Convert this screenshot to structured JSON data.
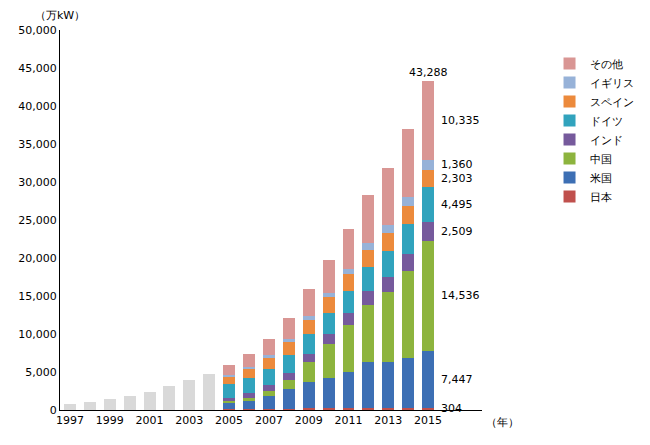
{
  "chart_data": {
    "type": "bar",
    "stacked": true,
    "y_label": "（万kW）",
    "x_label": "（年）",
    "categories": [
      "1997",
      null,
      "1999",
      null,
      "2001",
      null,
      "2003",
      null,
      "2005",
      null,
      "2007",
      null,
      "2009",
      null,
      "2011",
      null,
      "2013",
      null,
      "2015"
    ],
    "series": [
      {
        "color": "#d9d9d9",
        "values": [
          760,
          1020,
          1390,
          1810,
          2390,
          3110,
          3960,
          4790,
          null,
          null,
          null,
          null,
          null,
          null,
          null,
          null,
          null,
          null,
          null
        ]
      },
      {
        "name": "日本",
        "color": "#c0504d",
        "values": [
          null,
          null,
          null,
          null,
          null,
          null,
          null,
          null,
          108,
          149,
          167,
          188,
          208,
          229,
          244,
          261,
          267,
          279,
          304
        ],
        "value_labels": [
          null,
          null,
          null,
          null,
          null,
          null,
          null,
          null,
          null,
          null,
          null,
          null,
          null,
          null,
          null,
          null,
          null,
          null,
          "304"
        ]
      },
      {
        "name": "米国",
        "color": "#3d6fb4",
        "values": [
          null,
          null,
          null,
          null,
          null,
          null,
          null,
          null,
          915,
          1160,
          1688,
          2517,
          3515,
          4030,
          4692,
          6021,
          6109,
          6588,
          7447
        ],
        "value_labels": [
          null,
          null,
          null,
          null,
          null,
          null,
          null,
          null,
          null,
          null,
          null,
          null,
          null,
          null,
          null,
          null,
          null,
          null,
          "7,447"
        ]
      },
      {
        "name": "中国",
        "color": "#8db43e",
        "values": [
          null,
          null,
          null,
          null,
          null,
          null,
          null,
          null,
          126,
          260,
          590,
          1210,
          2580,
          4473,
          6273,
          7532,
          9141,
          11476,
          14536
        ],
        "value_labels": [
          null,
          null,
          null,
          null,
          null,
          null,
          null,
          null,
          null,
          null,
          null,
          null,
          null,
          null,
          null,
          null,
          null,
          null,
          "14,536"
        ]
      },
      {
        "name": "インド",
        "color": "#765a9c",
        "values": [
          null,
          null,
          null,
          null,
          null,
          null,
          null,
          null,
          443,
          627,
          785,
          968,
          1093,
          1306,
          1608,
          1842,
          2015,
          2247,
          2509
        ],
        "value_labels": [
          null,
          null,
          null,
          null,
          null,
          null,
          null,
          null,
          null,
          null,
          null,
          null,
          null,
          null,
          null,
          null,
          null,
          null,
          "2,509"
        ]
      },
      {
        "name": "ドイツ",
        "color": "#31a3bd",
        "values": [
          null,
          null,
          null,
          null,
          null,
          null,
          null,
          null,
          1843,
          2062,
          2225,
          2390,
          2590,
          2721,
          2906,
          3125,
          3425,
          3925,
          4495
        ],
        "value_labels": [
          null,
          null,
          null,
          null,
          null,
          null,
          null,
          null,
          null,
          null,
          null,
          null,
          null,
          null,
          null,
          null,
          null,
          null,
          "4,495"
        ]
      },
      {
        "name": "スペイン",
        "color": "#ec8a3c",
        "values": [
          null,
          null,
          null,
          null,
          null,
          null,
          null,
          null,
          1003,
          1163,
          1515,
          1674,
          1915,
          2068,
          2167,
          2284,
          2296,
          2299,
          2303
        ],
        "value_labels": [
          null,
          null,
          null,
          null,
          null,
          null,
          null,
          null,
          null,
          null,
          null,
          null,
          null,
          null,
          null,
          null,
          null,
          null,
          "2,303"
        ]
      },
      {
        "name": "イギリス",
        "color": "#97b2d8",
        "values": [
          null,
          null,
          null,
          null,
          null,
          null,
          null,
          null,
          135,
          196,
          239,
          341,
          442,
          520,
          655,
          891,
          1053,
          1253,
          1360
        ],
        "value_labels": [
          null,
          null,
          null,
          null,
          null,
          null,
          null,
          null,
          null,
          null,
          null,
          null,
          null,
          null,
          null,
          null,
          null,
          null,
          "1,360"
        ]
      },
      {
        "name": "その他",
        "color": "#d99694",
        "values": [
          null,
          null,
          null,
          null,
          null,
          null,
          null,
          null,
          1336,
          1796,
          2183,
          2799,
          3560,
          4448,
          5245,
          6329,
          7527,
          8888,
          10335
        ],
        "value_labels": [
          null,
          null,
          null,
          null,
          null,
          null,
          null,
          null,
          null,
          null,
          null,
          null,
          null,
          null,
          null,
          null,
          null,
          null,
          "10,335"
        ]
      }
    ],
    "annotations": [
      {
        "text": "43,288",
        "x": 18,
        "y": 43288
      }
    ],
    "ylim": [
      0,
      50000
    ],
    "yticks": [
      0,
      {
        "value": 5000,
        "label": "5,000"
      },
      {
        "value": 10000,
        "label": "10,000"
      },
      {
        "value": 15000,
        "label": "15,000"
      },
      {
        "value": 20000,
        "label": "20,000"
      },
      {
        "value": 25000,
        "label": "25,000"
      },
      {
        "value": 30000,
        "label": "30,000"
      },
      {
        "value": 35000,
        "label": "35,000"
      },
      {
        "value": 40000,
        "label": "40,000"
      },
      {
        "value": 45000,
        "label": "45,000"
      },
      {
        "value": 50000,
        "label": "50,000"
      }
    ],
    "grid": false,
    "legend": "right"
  }
}
